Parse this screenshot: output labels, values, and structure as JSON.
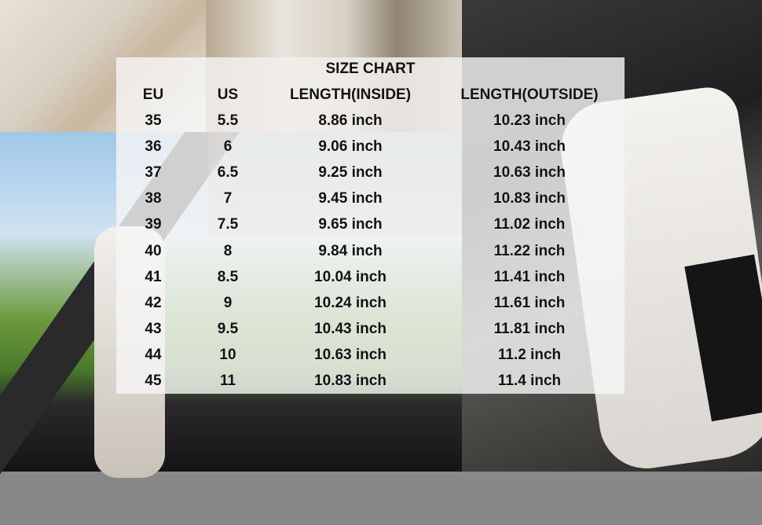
{
  "size_chart": {
    "title": "SIZE CHART",
    "headers": [
      "EU",
      "US",
      "LENGTH(INSIDE)",
      "LENGTH(OUTSIDE)"
    ],
    "rows": [
      [
        "35",
        "5.5",
        "8.86 inch",
        "10.23 inch"
      ],
      [
        "36",
        "6",
        "9.06 inch",
        "10.43 inch"
      ],
      [
        "37",
        "6.5",
        "9.25 inch",
        "10.63 inch"
      ],
      [
        "38",
        "7",
        "9.45 inch",
        "10.83 inch"
      ],
      [
        "39",
        "7.5",
        "9.65 inch",
        "11.02 inch"
      ],
      [
        "40",
        "8",
        "9.84 inch",
        "11.22 inch"
      ],
      [
        "41",
        "8.5",
        "10.04 inch",
        "11.41 inch"
      ],
      [
        "42",
        "9",
        "10.24 inch",
        "11.61 inch"
      ],
      [
        "43",
        "9.5",
        "10.43 inch",
        "11.81 inch"
      ],
      [
        "44",
        "10",
        "10.63 inch",
        "11.2 inch"
      ],
      [
        "45",
        "11",
        "10.83 inch",
        "11.4 inch"
      ]
    ]
  }
}
